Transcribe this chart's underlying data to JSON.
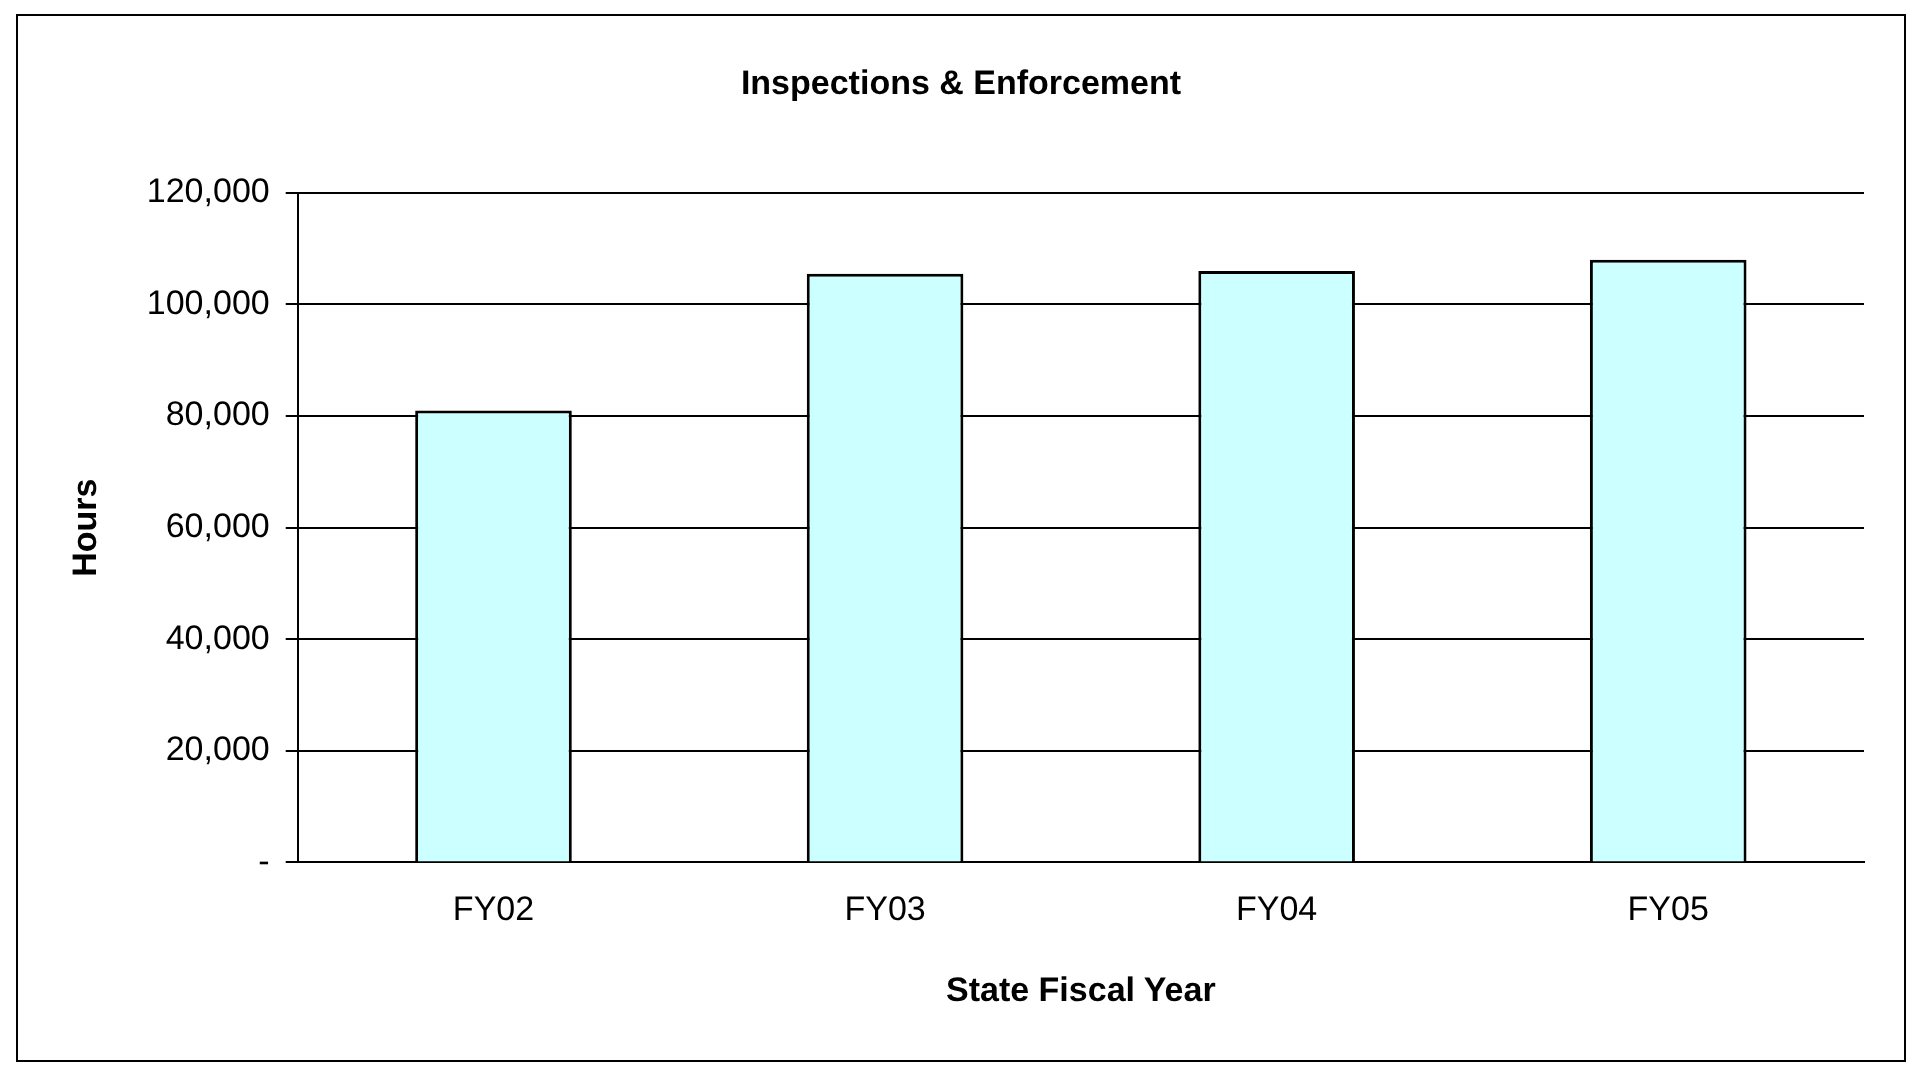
{
  "chart_data": {
    "type": "bar",
    "title": "Inspections & Enforcement",
    "xlabel": "State Fiscal Year",
    "ylabel": "Hours",
    "categories": [
      "FY02",
      "FY03",
      "FY04",
      "FY05"
    ],
    "values": [
      81000,
      105500,
      106000,
      108000
    ],
    "color": "#ccffff",
    "ylim": [
      0,
      120000
    ],
    "yticks": [
      {
        "value": 0,
        "label": "-"
      },
      {
        "value": 20000,
        "label": "20,000"
      },
      {
        "value": 40000,
        "label": "40,000"
      },
      {
        "value": 60000,
        "label": "60,000"
      },
      {
        "value": 80000,
        "label": "80,000"
      },
      {
        "value": 100000,
        "label": "100,000"
      },
      {
        "value": 120000,
        "label": "120,000"
      }
    ],
    "grid": "y",
    "legend": false
  }
}
